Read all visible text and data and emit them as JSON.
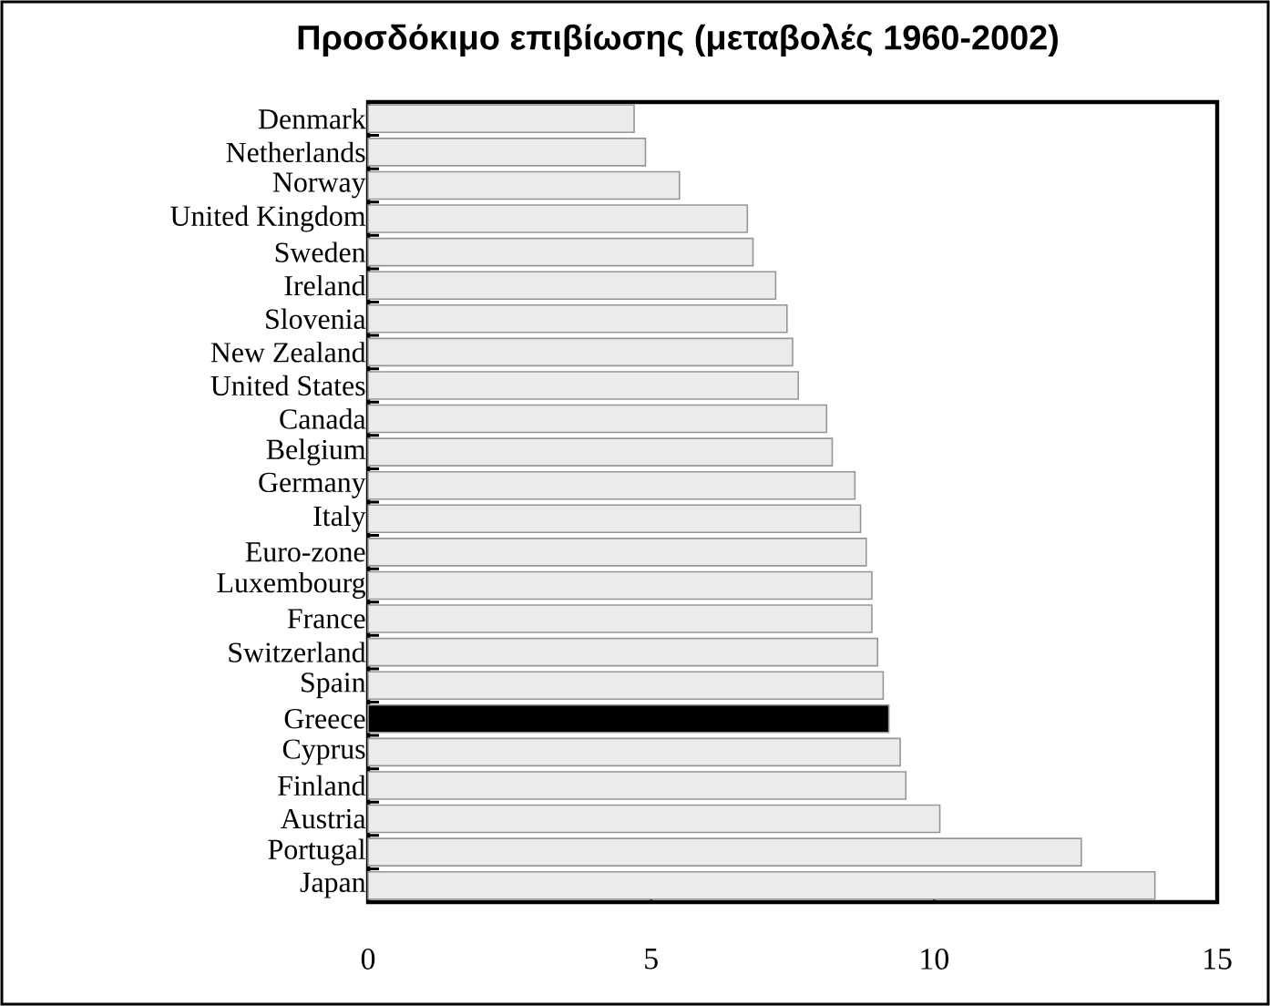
{
  "chart_data": {
    "type": "bar",
    "orientation": "horizontal",
    "title": "Προσδόκιμο επιβίωσης (μεταβολές 1960-2002)",
    "categories": [
      "Denmark",
      "Netherlands",
      "Norway",
      "United Kingdom",
      "Sweden",
      "Ireland",
      "Slovenia",
      "New Zealand",
      "United States",
      "Canada",
      "Belgium",
      "Germany",
      "Italy",
      "Euro-zone",
      "Luxembourg",
      "France",
      "Switzerland",
      "Spain",
      "Greece",
      "Cyprus",
      "Finland",
      "Austria",
      "Portugal",
      "Japan"
    ],
    "values": [
      4.7,
      4.9,
      5.5,
      6.7,
      6.8,
      7.2,
      7.4,
      7.5,
      7.6,
      8.1,
      8.2,
      8.6,
      8.7,
      8.8,
      8.9,
      8.9,
      9.0,
      9.1,
      9.2,
      9.4,
      9.5,
      10.1,
      12.6,
      13.9
    ],
    "colors": [
      "#ebebeb",
      "#ebebeb",
      "#ebebeb",
      "#ebebeb",
      "#ebebeb",
      "#ebebeb",
      "#ebebeb",
      "#ebebeb",
      "#ebebeb",
      "#ebebeb",
      "#ebebeb",
      "#ebebeb",
      "#ebebeb",
      "#ebebeb",
      "#ebebeb",
      "#ebebeb",
      "#ebebeb",
      "#ebebeb",
      "#000000",
      "#ebebeb",
      "#ebebeb",
      "#ebebeb",
      "#ebebeb",
      "#ebebeb"
    ],
    "xlim": [
      0,
      15
    ],
    "xticks": [
      0,
      5,
      10,
      15
    ]
  }
}
